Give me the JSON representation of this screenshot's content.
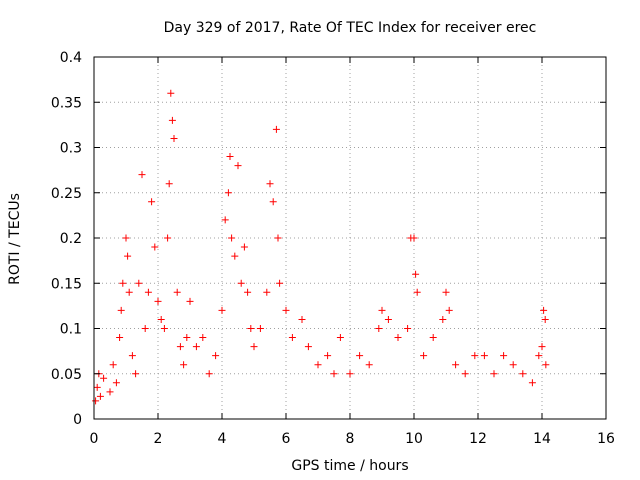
{
  "chart_data": {
    "type": "scatter",
    "title": "Day 329 of 2017, Rate Of TEC Index for receiver erec",
    "xlabel": "GPS time / hours",
    "ylabel": "ROTI / TECUs",
    "xlim": [
      0,
      16
    ],
    "ylim": [
      0,
      0.4
    ],
    "x_ticks": [
      0,
      2,
      4,
      6,
      8,
      10,
      12,
      14,
      16
    ],
    "x_tick_labels": [
      "0",
      "2",
      "4",
      "6",
      "8",
      "10",
      "12",
      "14",
      "16"
    ],
    "y_ticks": [
      0,
      0.05,
      0.1,
      0.15,
      0.2,
      0.25,
      0.3,
      0.35,
      0.4
    ],
    "y_tick_labels": [
      "0",
      "0.05",
      "0.1",
      "0.15",
      "0.2",
      "0.25",
      "0.3",
      "0.35",
      "0.4"
    ],
    "grid": true,
    "marker": "+",
    "color": "#ff0000",
    "series": [
      {
        "name": "ROTI",
        "points": [
          [
            0.05,
            0.02
          ],
          [
            0.1,
            0.035
          ],
          [
            0.15,
            0.05
          ],
          [
            0.2,
            0.025
          ],
          [
            0.3,
            0.045
          ],
          [
            0.5,
            0.03
          ],
          [
            0.6,
            0.06
          ],
          [
            0.7,
            0.04
          ],
          [
            0.8,
            0.09
          ],
          [
            0.85,
            0.12
          ],
          [
            0.9,
            0.15
          ],
          [
            1.0,
            0.2
          ],
          [
            1.05,
            0.18
          ],
          [
            1.1,
            0.14
          ],
          [
            1.2,
            0.07
          ],
          [
            1.3,
            0.05
          ],
          [
            1.4,
            0.15
          ],
          [
            1.5,
            0.27
          ],
          [
            1.6,
            0.1
          ],
          [
            1.7,
            0.14
          ],
          [
            1.8,
            0.24
          ],
          [
            1.9,
            0.19
          ],
          [
            2.0,
            0.13
          ],
          [
            2.1,
            0.11
          ],
          [
            2.2,
            0.1
          ],
          [
            2.3,
            0.2
          ],
          [
            2.35,
            0.26
          ],
          [
            2.4,
            0.36
          ],
          [
            2.45,
            0.33
          ],
          [
            2.5,
            0.31
          ],
          [
            2.6,
            0.14
          ],
          [
            2.7,
            0.08
          ],
          [
            2.8,
            0.06
          ],
          [
            2.9,
            0.09
          ],
          [
            3.0,
            0.13
          ],
          [
            3.2,
            0.08
          ],
          [
            3.4,
            0.09
          ],
          [
            3.6,
            0.05
          ],
          [
            3.8,
            0.07
          ],
          [
            4.0,
            0.12
          ],
          [
            4.1,
            0.22
          ],
          [
            4.2,
            0.25
          ],
          [
            4.25,
            0.29
          ],
          [
            4.3,
            0.2
          ],
          [
            4.4,
            0.18
          ],
          [
            4.5,
            0.28
          ],
          [
            4.6,
            0.15
          ],
          [
            4.7,
            0.19
          ],
          [
            4.8,
            0.14
          ],
          [
            4.9,
            0.1
          ],
          [
            5.0,
            0.08
          ],
          [
            5.2,
            0.1
          ],
          [
            5.4,
            0.14
          ],
          [
            5.5,
            0.26
          ],
          [
            5.6,
            0.24
          ],
          [
            5.7,
            0.32
          ],
          [
            5.75,
            0.2
          ],
          [
            5.8,
            0.15
          ],
          [
            6.0,
            0.12
          ],
          [
            6.2,
            0.09
          ],
          [
            6.5,
            0.11
          ],
          [
            6.7,
            0.08
          ],
          [
            7.0,
            0.06
          ],
          [
            7.3,
            0.07
          ],
          [
            7.5,
            0.05
          ],
          [
            7.7,
            0.09
          ],
          [
            8.0,
            0.05
          ],
          [
            8.3,
            0.07
          ],
          [
            8.6,
            0.06
          ],
          [
            8.9,
            0.1
          ],
          [
            9.0,
            0.12
          ],
          [
            9.2,
            0.11
          ],
          [
            9.5,
            0.09
          ],
          [
            9.8,
            0.1
          ],
          [
            9.9,
            0.2
          ],
          [
            10.0,
            0.2
          ],
          [
            10.05,
            0.16
          ],
          [
            10.1,
            0.14
          ],
          [
            10.3,
            0.07
          ],
          [
            10.6,
            0.09
          ],
          [
            10.9,
            0.11
          ],
          [
            11.0,
            0.14
          ],
          [
            11.1,
            0.12
          ],
          [
            11.3,
            0.06
          ],
          [
            11.6,
            0.05
          ],
          [
            11.9,
            0.07
          ],
          [
            12.2,
            0.07
          ],
          [
            12.5,
            0.05
          ],
          [
            12.8,
            0.07
          ],
          [
            13.1,
            0.06
          ],
          [
            13.4,
            0.05
          ],
          [
            13.7,
            0.04
          ],
          [
            13.9,
            0.07
          ],
          [
            14.0,
            0.08
          ],
          [
            14.05,
            0.12
          ],
          [
            14.1,
            0.11
          ],
          [
            14.12,
            0.06
          ]
        ]
      }
    ]
  }
}
